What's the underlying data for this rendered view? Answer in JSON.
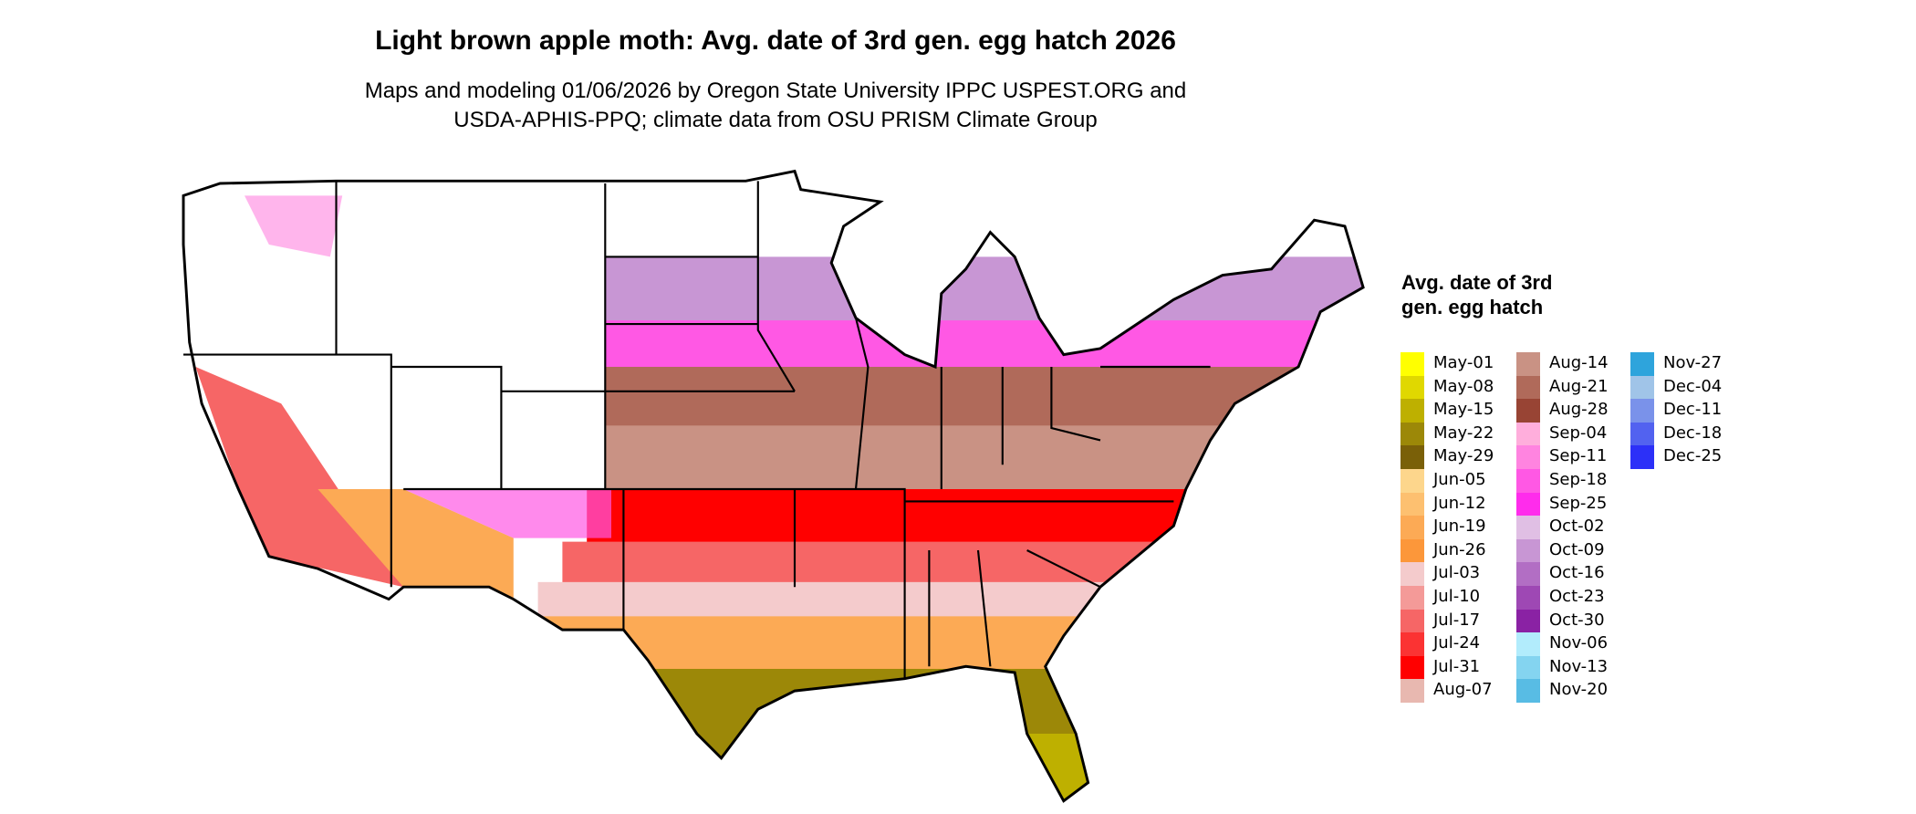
{
  "title": "Light brown apple moth: Avg. date of 3rd gen. egg hatch 2026",
  "subtitle_line1": "Maps and modeling 01/06/2026 by Oregon State University IPPC USPEST.ORG and",
  "subtitle_line2": "USDA-APHIS-PPQ; climate data from OSU PRISM Climate Group",
  "map": {
    "region": "Contiguous United States",
    "boundaries": "state outlines"
  },
  "legend": {
    "title": "Avg. date of 3rd gen. egg hatch",
    "columns": [
      [
        {
          "label": "May-01",
          "color": "#ffff00"
        },
        {
          "label": "May-08",
          "color": "#e0d800"
        },
        {
          "label": "May-15",
          "color": "#beb000"
        },
        {
          "label": "May-22",
          "color": "#9c8808"
        },
        {
          "label": "May-29",
          "color": "#7a6008"
        },
        {
          "label": "Jun-05",
          "color": "#fdd68c"
        },
        {
          "label": "Jun-12",
          "color": "#fdc070"
        },
        {
          "label": "Jun-19",
          "color": "#fcaa55"
        },
        {
          "label": "Jun-26",
          "color": "#fc973a"
        },
        {
          "label": "Jul-03",
          "color": "#f4cbcc"
        },
        {
          "label": "Jul-10",
          "color": "#f49a98"
        },
        {
          "label": "Jul-17",
          "color": "#f66666"
        },
        {
          "label": "Jul-24",
          "color": "#fb3333"
        },
        {
          "label": "Jul-31",
          "color": "#ff0000"
        },
        {
          "label": "Aug-07",
          "color": "#e8b8b0"
        }
      ],
      [
        {
          "label": "Aug-14",
          "color": "#c99284"
        },
        {
          "label": "Aug-21",
          "color": "#b06a5a"
        },
        {
          "label": "Aug-28",
          "color": "#984434"
        },
        {
          "label": "Sep-04",
          "color": "#ffaedc"
        },
        {
          "label": "Sep-11",
          "color": "#ff84e0"
        },
        {
          "label": "Sep-18",
          "color": "#ff58e4"
        },
        {
          "label": "Sep-25",
          "color": "#ff2cec"
        },
        {
          "label": "Oct-02",
          "color": "#e0bfe4"
        },
        {
          "label": "Oct-09",
          "color": "#c896d4"
        },
        {
          "label": "Oct-16",
          "color": "#b26ec4"
        },
        {
          "label": "Oct-23",
          "color": "#9e48b4"
        },
        {
          "label": "Oct-30",
          "color": "#8a22a4"
        },
        {
          "label": "Nov-06",
          "color": "#b2ecfc"
        },
        {
          "label": "Nov-13",
          "color": "#84d4f0"
        },
        {
          "label": "Nov-20",
          "color": "#58bce4"
        }
      ],
      [
        {
          "label": "Nov-27",
          "color": "#2ea4dc"
        },
        {
          "label": "Dec-04",
          "color": "#a0c4e8"
        },
        {
          "label": "Dec-11",
          "color": "#7a92ea"
        },
        {
          "label": "Dec-18",
          "color": "#5262f0"
        },
        {
          "label": "Dec-25",
          "color": "#2c30f8"
        }
      ]
    ]
  }
}
